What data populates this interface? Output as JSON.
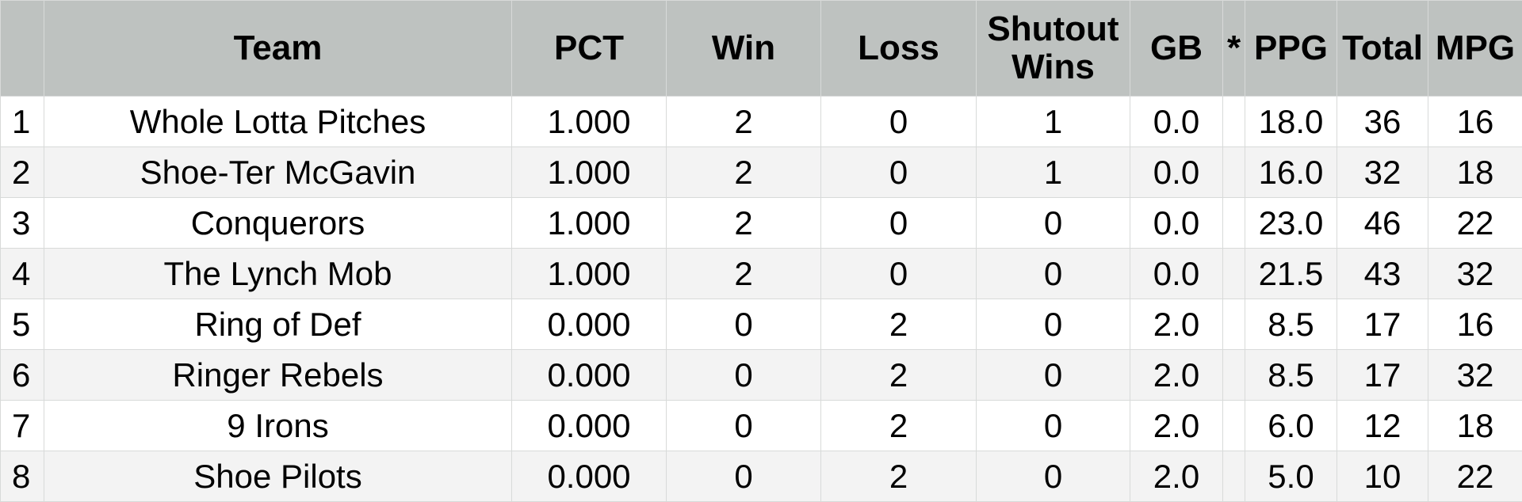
{
  "columns": [
    "",
    "Team",
    "PCT",
    "Win",
    "Loss",
    "Shutout Wins",
    "GB",
    "*",
    "PPG",
    "Total",
    "MPG"
  ],
  "rows": [
    [
      "1",
      "Whole Lotta Pitches",
      "1.000",
      "2",
      "0",
      "1",
      "0.0",
      "",
      "18.0",
      "36",
      "16"
    ],
    [
      "2",
      "Shoe-Ter McGavin",
      "1.000",
      "2",
      "0",
      "1",
      "0.0",
      "",
      "16.0",
      "32",
      "18"
    ],
    [
      "3",
      "Conquerors",
      "1.000",
      "2",
      "0",
      "0",
      "0.0",
      "",
      "23.0",
      "46",
      "22"
    ],
    [
      "4",
      "The Lynch Mob",
      "1.000",
      "2",
      "0",
      "0",
      "0.0",
      "",
      "21.5",
      "43",
      "32"
    ],
    [
      "5",
      "Ring of Def",
      "0.000",
      "0",
      "2",
      "0",
      "2.0",
      "",
      "8.5",
      "17",
      "16"
    ],
    [
      "6",
      "Ringer Rebels",
      "0.000",
      "0",
      "2",
      "0",
      "2.0",
      "",
      "8.5",
      "17",
      "32"
    ],
    [
      "7",
      "9 Irons",
      "0.000",
      "0",
      "2",
      "0",
      "2.0",
      "",
      "6.0",
      "12",
      "18"
    ],
    [
      "8",
      "Shoe Pilots",
      "0.000",
      "0",
      "2",
      "0",
      "2.0",
      "",
      "5.0",
      "10",
      "22"
    ]
  ],
  "colors": {
    "header_bg": "#bec2c0",
    "alt_row_bg": "#f3f3f3"
  }
}
